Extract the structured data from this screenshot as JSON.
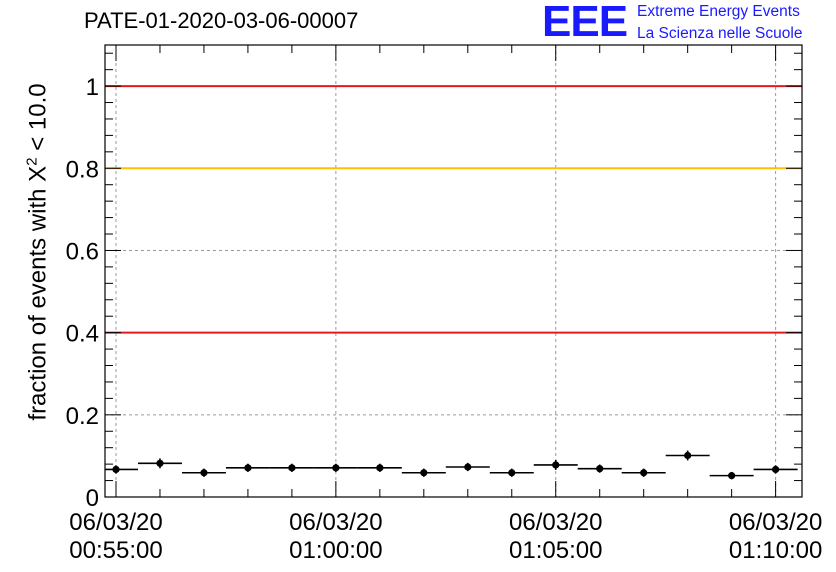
{
  "title": "PATE-01-2020-03-06-00007",
  "logo": {
    "mark": "EEE",
    "line1": "Extreme Energy Events",
    "line2": "La Scienza nelle Scuole",
    "color": "#1a1aff"
  },
  "chart_data": {
    "type": "scatter",
    "title": "PATE-01-2020-03-06-00007",
    "ylabel": {
      "prefix": "fraction of events with X",
      "superscript": "2",
      "suffix": " < 10.0"
    },
    "xlabel": "",
    "x_axis": {
      "kind": "time",
      "range_minutes": [
        -0.25,
        15.6
      ],
      "major_ticks": [
        {
          "minute": 0,
          "date": "06/03/20",
          "time": "00:55:00"
        },
        {
          "minute": 5,
          "date": "06/03/20",
          "time": "01:00:00"
        },
        {
          "minute": 10,
          "date": "06/03/20",
          "time": "01:05:00"
        },
        {
          "minute": 15,
          "date": "06/03/20",
          "time": "01:10:00"
        }
      ]
    },
    "ylim": [
      0,
      1.1
    ],
    "y_ticks": [
      {
        "value": 0,
        "label": "0"
      },
      {
        "value": 0.2,
        "label": "0.2"
      },
      {
        "value": 0.4,
        "label": "0.4"
      },
      {
        "value": 0.6,
        "label": "0.6"
      },
      {
        "value": 0.8,
        "label": "0.8"
      },
      {
        "value": 1,
        "label": "1"
      }
    ],
    "grid": true,
    "reference_lines": [
      {
        "y": 1.0,
        "color": "#e41a1a"
      },
      {
        "y": 0.8,
        "color": "#ffc000"
      },
      {
        "y": 0.4,
        "color": "#e41a1a"
      }
    ],
    "series": [
      {
        "points": [
          {
            "x": 0.0,
            "xerr": 0.5,
            "y": 0.067,
            "yerr": 0.01
          },
          {
            "x": 1.0,
            "xerr": 0.5,
            "y": 0.082,
            "yerr": 0.012
          },
          {
            "x": 2.0,
            "xerr": 0.5,
            "y": 0.059,
            "yerr": 0.01
          },
          {
            "x": 3.0,
            "xerr": 0.5,
            "y": 0.071,
            "yerr": 0.01
          },
          {
            "x": 4.0,
            "xerr": 0.5,
            "y": 0.071,
            "yerr": 0.01
          },
          {
            "x": 5.0,
            "xerr": 0.5,
            "y": 0.071,
            "yerr": 0.01
          },
          {
            "x": 6.0,
            "xerr": 0.5,
            "y": 0.071,
            "yerr": 0.01
          },
          {
            "x": 7.0,
            "xerr": 0.5,
            "y": 0.059,
            "yerr": 0.01
          },
          {
            "x": 8.0,
            "xerr": 0.5,
            "y": 0.073,
            "yerr": 0.01
          },
          {
            "x": 9.0,
            "xerr": 0.5,
            "y": 0.059,
            "yerr": 0.01
          },
          {
            "x": 10.0,
            "xerr": 0.5,
            "y": 0.078,
            "yerr": 0.012
          },
          {
            "x": 11.0,
            "xerr": 0.5,
            "y": 0.069,
            "yerr": 0.01
          },
          {
            "x": 12.0,
            "xerr": 0.5,
            "y": 0.059,
            "yerr": 0.01
          },
          {
            "x": 13.0,
            "xerr": 0.5,
            "y": 0.101,
            "yerr": 0.012
          },
          {
            "x": 14.0,
            "xerr": 0.5,
            "y": 0.052,
            "yerr": 0.009
          },
          {
            "x": 15.0,
            "xerr": 0.5,
            "y": 0.067,
            "yerr": 0.01
          }
        ]
      }
    ]
  }
}
